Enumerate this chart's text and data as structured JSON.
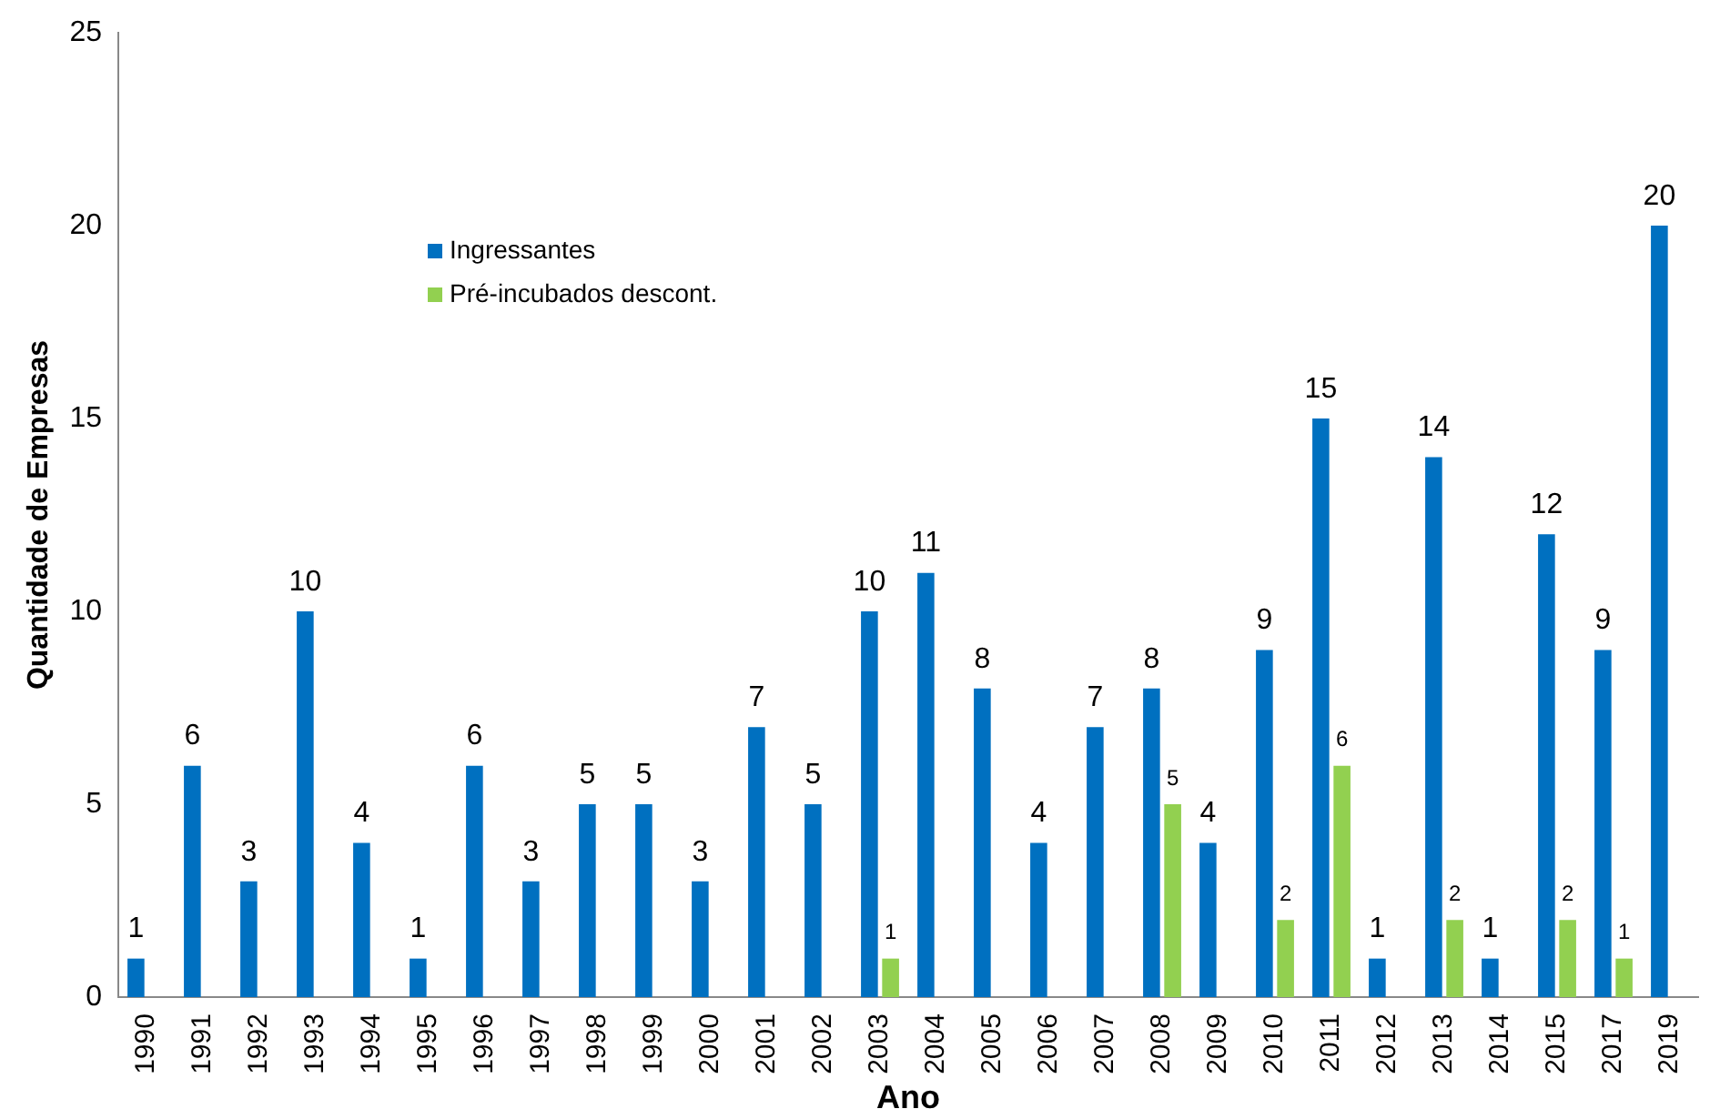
{
  "chart_data": {
    "type": "bar",
    "xlabel": "Ano",
    "ylabel": "Quantidade de Empresas",
    "categories": [
      "1990",
      "1991",
      "1992",
      "1993",
      "1994",
      "1995",
      "1996",
      "1997",
      "1998",
      "1999",
      "2000",
      "2001",
      "2002",
      "2003",
      "2004",
      "2005",
      "2006",
      "2007",
      "2008",
      "2009",
      "2010",
      "2011",
      "2012",
      "2013",
      "2014",
      "2015",
      "2017",
      "2019"
    ],
    "series": [
      {
        "name": "Ingressantes",
        "color": "#0070c0",
        "values": [
          1,
          6,
          3,
          10,
          4,
          1,
          6,
          3,
          5,
          5,
          3,
          7,
          5,
          10,
          11,
          8,
          4,
          7,
          8,
          4,
          9,
          15,
          1,
          14,
          1,
          12,
          9,
          20
        ]
      },
      {
        "name": "Pré-incubados descont.",
        "color": "#92d050",
        "values": [
          null,
          null,
          null,
          null,
          null,
          null,
          null,
          null,
          null,
          null,
          null,
          null,
          null,
          1,
          null,
          null,
          null,
          null,
          5,
          null,
          2,
          6,
          null,
          2,
          null,
          2,
          1,
          null
        ]
      }
    ],
    "ylim": [
      0,
      25
    ],
    "yticks": [
      0,
      5,
      10,
      15,
      20,
      25
    ],
    "grid": false,
    "legend": "top left",
    "data_labels": true
  }
}
